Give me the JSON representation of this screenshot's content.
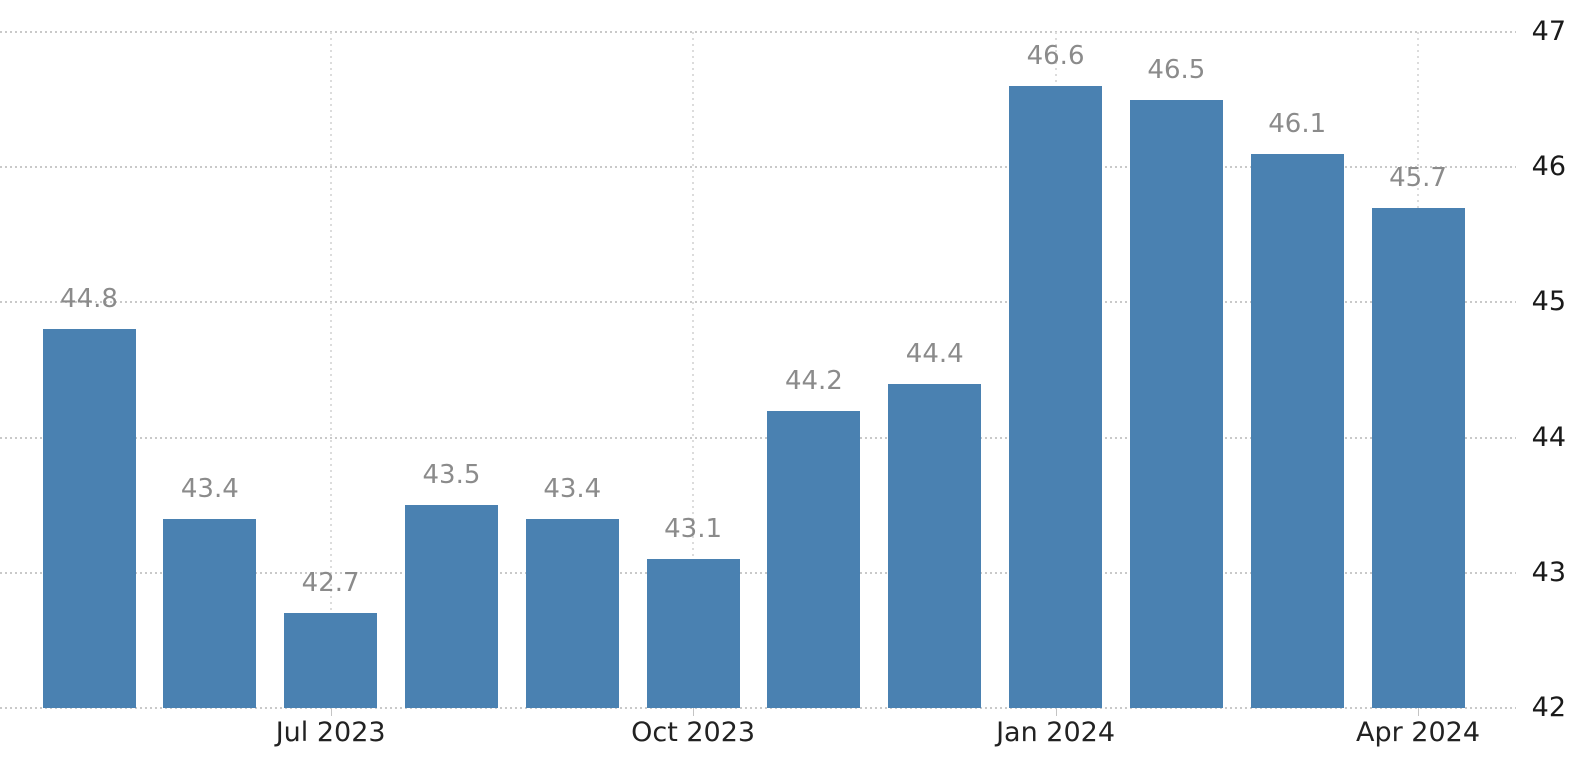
{
  "chart_data": {
    "type": "bar",
    "title": "",
    "values": [
      44.8,
      43.4,
      42.7,
      43.5,
      43.4,
      43.1,
      44.2,
      44.4,
      46.6,
      46.5,
      46.1,
      45.7
    ],
    "data_labels": [
      "44.8",
      "43.4",
      "42.7",
      "43.5",
      "43.4",
      "43.1",
      "44.2",
      "44.4",
      "46.6",
      "46.5",
      "46.1",
      "45.7"
    ],
    "x_ticks": [
      {
        "label": "Jul 2023",
        "bar_index": 2
      },
      {
        "label": "Oct 2023",
        "bar_index": 5
      },
      {
        "label": "Jan 2024",
        "bar_index": 8
      },
      {
        "label": "Apr 2024",
        "bar_index": 11
      }
    ],
    "y_ticks": [
      47,
      46,
      45,
      44,
      43,
      42
    ],
    "ylim": [
      42,
      47
    ],
    "y_axis_side": "right",
    "grid": "dotted",
    "legend": "none",
    "colors": {
      "bar": "#4a81b1",
      "value_label": "#8b8b8b",
      "y_axis_label": "#1a1a1a",
      "x_axis_label": "#222222",
      "h_gridline": "#c9c9c9",
      "v_gridline": "#dcdcdc",
      "tick": "#c4c4c4",
      "background": "#ffffff"
    }
  }
}
